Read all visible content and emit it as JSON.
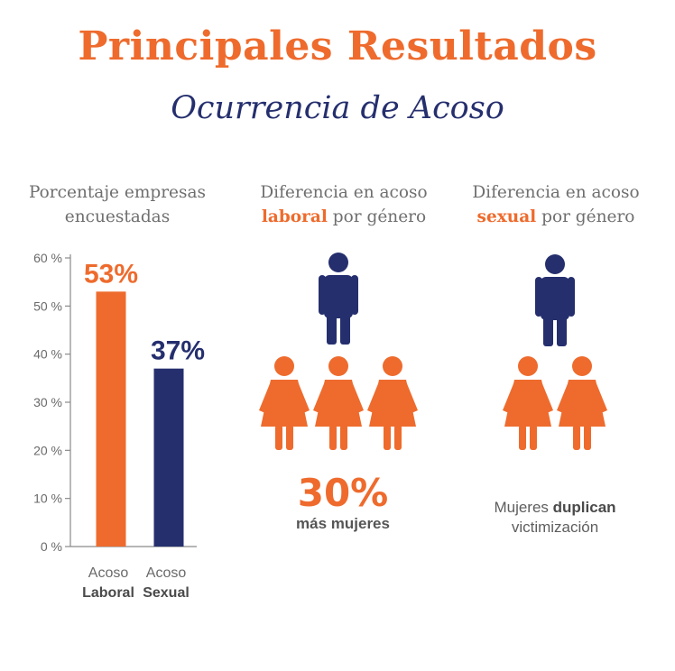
{
  "header": {
    "title": "Principales Resultados",
    "subtitle": "Ocurrencia de Acoso"
  },
  "columns": [
    {
      "line1": "Porcentaje empresas",
      "line2_pre": "encuestadas",
      "line2_hl": "",
      "line2_post": ""
    },
    {
      "line1": "Diferencia en acoso",
      "line2_pre": "",
      "line2_hl": "laboral",
      "line2_post": " por género"
    },
    {
      "line1": "Diferencia en acoso",
      "line2_pre": "",
      "line2_hl": "sexual",
      "line2_post": " por género"
    }
  ],
  "chart_data": {
    "type": "bar",
    "categories": [
      {
        "line1": "Acoso",
        "line2": "Laboral"
      },
      {
        "line1": "Acoso",
        "line2": "Sexual"
      }
    ],
    "values": [
      53,
      37
    ],
    "data_labels": [
      "53%",
      "37%"
    ],
    "bar_colors": [
      "#ee6b2d",
      "#252f6e"
    ],
    "ylim": [
      0,
      60
    ],
    "yticks": [
      0,
      10,
      20,
      30,
      40,
      50,
      60
    ],
    "ytick_labels": [
      "0 %",
      "10 %",
      "20 %",
      "30 %",
      "40 %",
      "50 %",
      "60 %"
    ],
    "grid": false
  },
  "laboral": {
    "men": 1,
    "women": 3,
    "stat": "30%",
    "caption": "más mujeres"
  },
  "sexual": {
    "men": 1,
    "women": 2,
    "caption_pre": "Mujeres ",
    "caption_bold": "duplican",
    "caption_line2": "victimización"
  },
  "colors": {
    "orange": "#ee6b2d",
    "navy": "#252f6e",
    "gray_text": "#6f6f6f"
  }
}
